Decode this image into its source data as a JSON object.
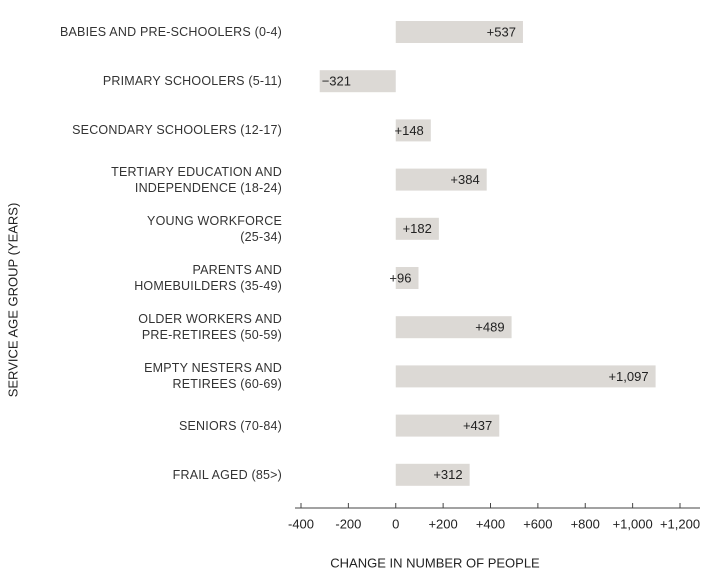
{
  "chart_data": {
    "type": "bar",
    "orientation": "horizontal",
    "categories": [
      "BABIES AND PRE-SCHOOLERS (0-4)",
      "PRIMARY SCHOOLERS (5-11)",
      "SECONDARY SCHOOLERS (12-17)",
      "TERTIARY EDUCATION AND\nINDEPENDENCE (18-24)",
      "YOUNG WORKFORCE\n(25-34)",
      "PARENTS AND\nHOMEBUILDERS (35-49)",
      "OLDER WORKERS AND\nPRE-RETIREES (50-59)",
      "EMPTY NESTERS AND\nRETIREES (60-69)",
      "SENIORS (70-84)",
      "FRAIL AGED (85>)"
    ],
    "values": [
      537,
      -321,
      148,
      384,
      182,
      96,
      489,
      1097,
      437,
      312
    ],
    "value_labels": [
      "+537",
      "−321",
      "+148",
      "+384",
      "+182",
      "+96",
      "+489",
      "+1,097",
      "+437",
      "+312"
    ],
    "color": "#dcd9d5",
    "xlim": [
      -400,
      1200
    ],
    "xticks": [
      -400,
      -200,
      0,
      {
        "value": 200,
        "label": "+200"
      },
      {
        "value": 400,
        "label": "+400"
      },
      {
        "value": 600,
        "label": "+600"
      },
      {
        "value": 800,
        "label": "+800"
      },
      {
        "value": 1000,
        "label": "+1,000"
      },
      {
        "value": 1200,
        "label": "+1,200"
      }
    ],
    "xlabel": "CHANGE IN NUMBER OF PEOPLE",
    "ylabel": "SERVICE AGE GROUP (YEARS)",
    "grid": false
  }
}
